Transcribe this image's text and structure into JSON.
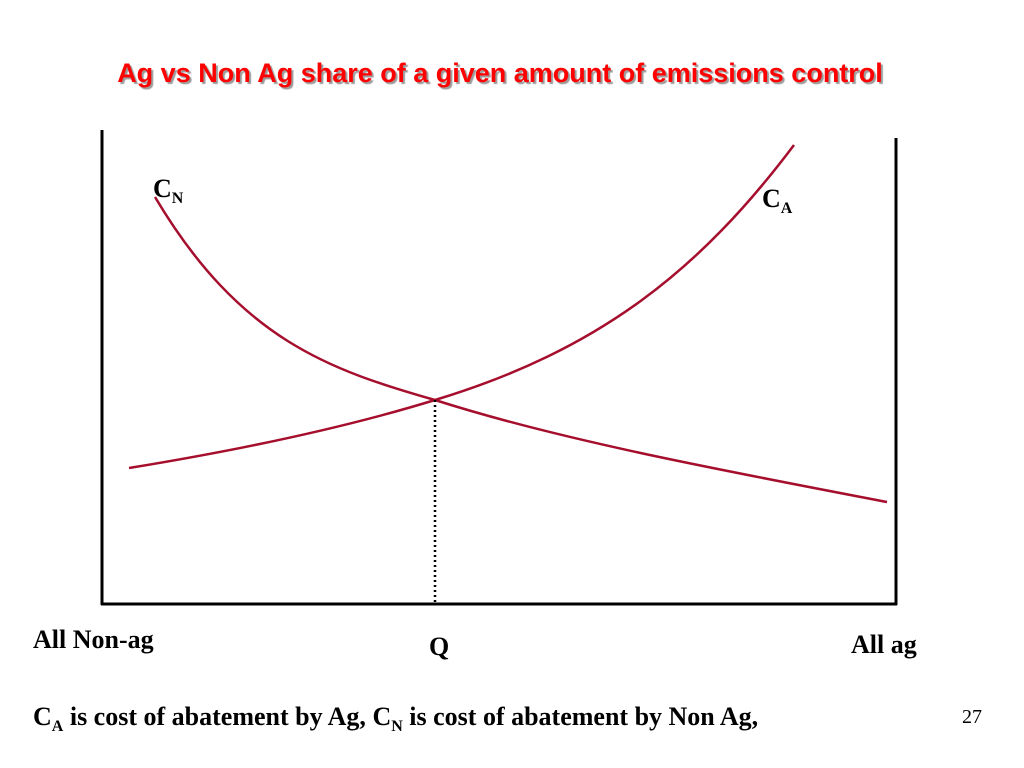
{
  "slide": {
    "title": "Ag vs Non Ag share of a given amount of emissions control",
    "page_number": "27"
  },
  "diagram": {
    "curve_labels": {
      "cn": {
        "main": "C",
        "sub": "N"
      },
      "ca": {
        "main": "C",
        "sub": "A"
      }
    },
    "x_axis": {
      "left_label": "All Non-ag",
      "center_label": "Q",
      "right_label": "All ag"
    },
    "colors": {
      "curve": "#a50f2d",
      "axis": "#000000",
      "title": "#ff0000"
    }
  },
  "caption": {
    "ca_main": "C",
    "ca_sub": "A",
    "part1": " is cost of abatement by Ag, ",
    "cn_main": "C",
    "cn_sub": "N",
    "part2": " is cost of abatement by Non Ag,"
  }
}
